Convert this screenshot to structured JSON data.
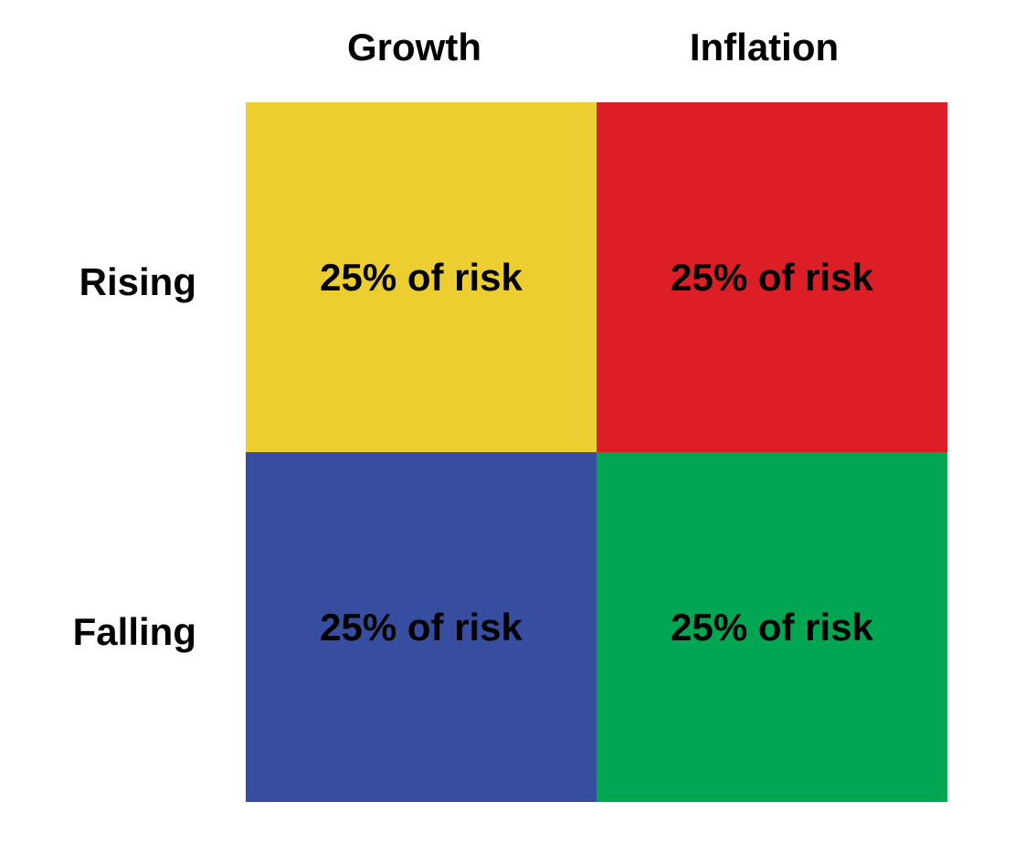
{
  "columns": [
    "Growth",
    "Inflation"
  ],
  "rows": [
    "Rising",
    "Falling"
  ],
  "cells": [
    [
      "25% of risk",
      "25% of risk"
    ],
    [
      "25% of risk",
      "25% of risk"
    ]
  ]
}
